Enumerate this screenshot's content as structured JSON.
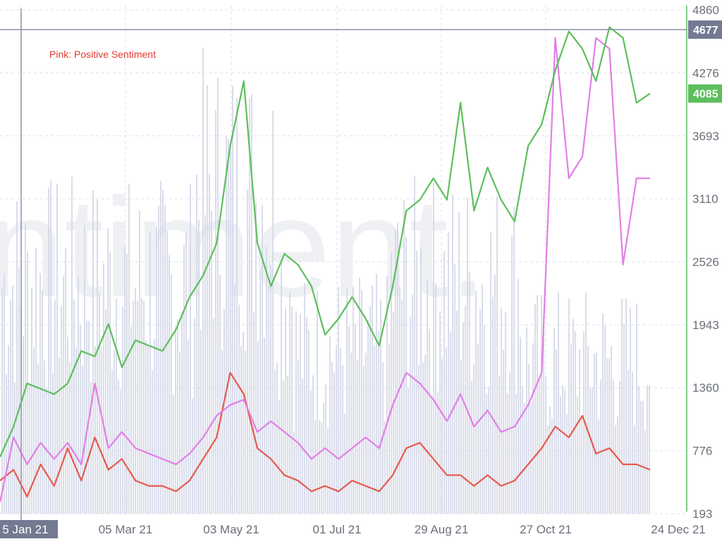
{
  "watermark": "ntiment.",
  "annotation": "Pink: Positive Sentiment",
  "colors": {
    "price": "#5cbf5c",
    "positive": "#e27ee8",
    "negative": "#e55a4e",
    "volume": "#d4d7e6",
    "annotation": "#e03a2e",
    "crosshair": "#8a90a6",
    "grid": "#dfe2ea"
  },
  "chart_data": {
    "type": "line",
    "x_ticks": [
      "5 Jan 21",
      "05 Mar 21",
      "03 May 21",
      "01 Jul 21",
      "29 Aug 21",
      "27 Oct 21",
      "24 Dec 21"
    ],
    "y_ticks": [
      "4860",
      "4276",
      "3693",
      "3110",
      "2526",
      "1943",
      "1360",
      "776",
      "193"
    ],
    "ylim": [
      193,
      4860
    ],
    "crosshair": {
      "x": "5 Jan 21",
      "y": "4677"
    },
    "last_value": "4085",
    "grid": true,
    "series": [
      {
        "key": "price",
        "values": [
          718,
          1000,
          1400,
          1350,
          1300,
          1400,
          1700,
          1650,
          1950,
          1550,
          1800,
          1750,
          1700,
          1900,
          2200,
          2400,
          2700,
          3600,
          4200,
          2700,
          2300,
          2600,
          2500,
          2300,
          1850,
          2000,
          2200,
          2000,
          1750,
          2300,
          3000,
          3100,
          3300,
          3100,
          4000,
          3000,
          3400,
          3100,
          2900,
          3600,
          3800,
          4300,
          4660,
          4500,
          4200,
          4700,
          4600,
          4000,
          4085
        ]
      },
      {
        "name": "Positive Sentiment",
        "key": "positive",
        "values": [
          300,
          900,
          650,
          850,
          700,
          850,
          650,
          1400,
          800,
          950,
          800,
          750,
          700,
          650,
          750,
          900,
          1100,
          1200,
          1250,
          950,
          1050,
          950,
          850,
          700,
          800,
          700,
          800,
          900,
          800,
          1200,
          1500,
          1400,
          1250,
          1050,
          1300,
          1000,
          1150,
          950,
          1000,
          1200,
          1500,
          4600,
          3300,
          3500,
          4600,
          4500,
          2500,
          3300,
          3300
        ]
      },
      {
        "key": "negative",
        "values": [
          500,
          600,
          350,
          650,
          450,
          800,
          500,
          900,
          600,
          700,
          500,
          450,
          450,
          400,
          500,
          700,
          900,
          1500,
          1300,
          800,
          700,
          550,
          500,
          400,
          450,
          400,
          500,
          450,
          400,
          550,
          800,
          850,
          700,
          550,
          550,
          450,
          550,
          450,
          500,
          650,
          800,
          1000,
          900,
          1100,
          750,
          800,
          650,
          650,
          600
        ]
      }
    ]
  }
}
